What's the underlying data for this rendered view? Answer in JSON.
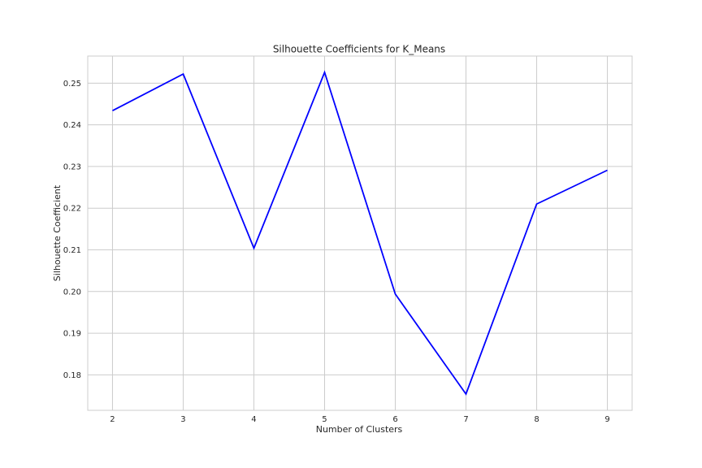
{
  "chart_data": {
    "type": "line",
    "title": "Silhouette Coefficients for K_Means",
    "xlabel": "Number of Clusters",
    "ylabel": "Silhouette Coefficient",
    "x": [
      2,
      3,
      4,
      5,
      6,
      7,
      8,
      9
    ],
    "series": [
      {
        "values": [
          0.2434,
          0.2522,
          0.2104,
          0.2526,
          0.1994,
          0.1754,
          0.221,
          0.2291
        ]
      }
    ],
    "xticks": [
      "2",
      "3",
      "4",
      "5",
      "6",
      "7",
      "8",
      "9"
    ],
    "yticks": [
      "0.18",
      "0.19",
      "0.20",
      "0.21",
      "0.22",
      "0.23",
      "0.24",
      "0.25"
    ],
    "ytick_values": [
      0.18,
      0.19,
      0.2,
      0.21,
      0.22,
      0.23,
      0.24,
      0.25
    ],
    "xlim": [
      1.65,
      9.35
    ],
    "ylim": [
      0.1715,
      0.2565
    ],
    "grid": true,
    "legend": "none",
    "colors": {
      "line": "#0000ff",
      "grid": "#cccccc",
      "frame": "#cccccc"
    }
  }
}
